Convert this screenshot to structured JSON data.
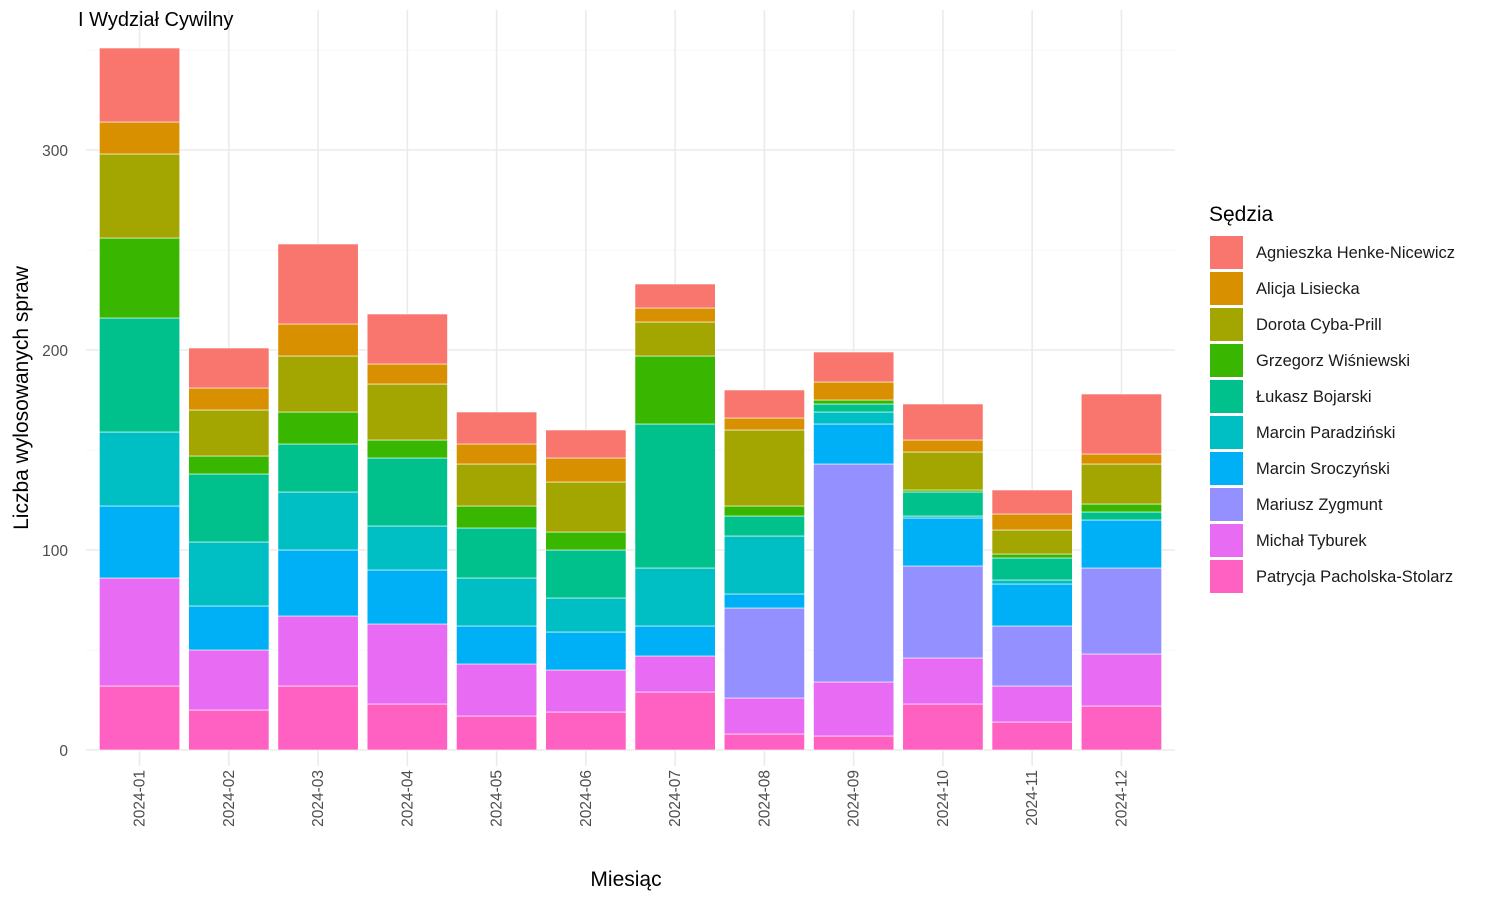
{
  "chart_data": {
    "type": "bar",
    "stacked": true,
    "title": "I Wydział Cywilny",
    "xlabel": "Miesiąc",
    "ylabel": "Liczba wylosowanych spraw",
    "ylim": [
      0,
      351
    ],
    "yticks": [
      0,
      100,
      200,
      300
    ],
    "grid": true,
    "legend_title": "Sędzia",
    "legend_position": "right",
    "categories": [
      "2024-01",
      "2024-02",
      "2024-03",
      "2024-04",
      "2024-05",
      "2024-06",
      "2024-07",
      "2024-08",
      "2024-09",
      "2024-10",
      "2024-11",
      "2024-12"
    ],
    "series": [
      {
        "name": "Patrycja Pacholska-Stolarz",
        "color": "#FF61C3",
        "values": [
          32,
          20,
          32,
          23,
          17,
          19,
          29,
          8,
          7,
          23,
          14,
          22
        ]
      },
      {
        "name": "Michał Tyburek",
        "color": "#E76BF3",
        "values": [
          54,
          30,
          35,
          40,
          26,
          21,
          18,
          18,
          27,
          23,
          18,
          26
        ]
      },
      {
        "name": "Mariusz Zygmunt",
        "color": "#9590FF",
        "values": [
          0,
          0,
          0,
          0,
          0,
          0,
          0,
          45,
          109,
          46,
          30,
          43
        ]
      },
      {
        "name": "Marcin Sroczyński",
        "color": "#00B0F6",
        "values": [
          36,
          22,
          33,
          27,
          19,
          19,
          15,
          7,
          20,
          24,
          21,
          24
        ]
      },
      {
        "name": "Marcin Paradziński",
        "color": "#00BFC4",
        "values": [
          37,
          32,
          29,
          22,
          24,
          17,
          29,
          29,
          6,
          1,
          2,
          0
        ]
      },
      {
        "name": "Łukasz Bojarski",
        "color": "#00C08B",
        "values": [
          57,
          34,
          24,
          34,
          25,
          24,
          72,
          10,
          4,
          12,
          11,
          4
        ]
      },
      {
        "name": "Grzegorz Wiśniewski",
        "color": "#39B600",
        "values": [
          40,
          9,
          16,
          9,
          11,
          9,
          34,
          5,
          2,
          1,
          2,
          4
        ]
      },
      {
        "name": "Dorota Cyba-Prill",
        "color": "#A3A500",
        "values": [
          42,
          23,
          28,
          28,
          21,
          25,
          17,
          38,
          0,
          19,
          12,
          20
        ]
      },
      {
        "name": "Alicja Lisiecka",
        "color": "#D89000",
        "values": [
          16,
          11,
          16,
          10,
          10,
          12,
          7,
          6,
          9,
          6,
          8,
          5
        ]
      },
      {
        "name": "Agnieszka Henke-Nicewicz",
        "color": "#F8766D",
        "values": [
          37,
          20,
          40,
          25,
          16,
          14,
          12,
          14,
          15,
          18,
          12,
          30
        ]
      }
    ]
  }
}
